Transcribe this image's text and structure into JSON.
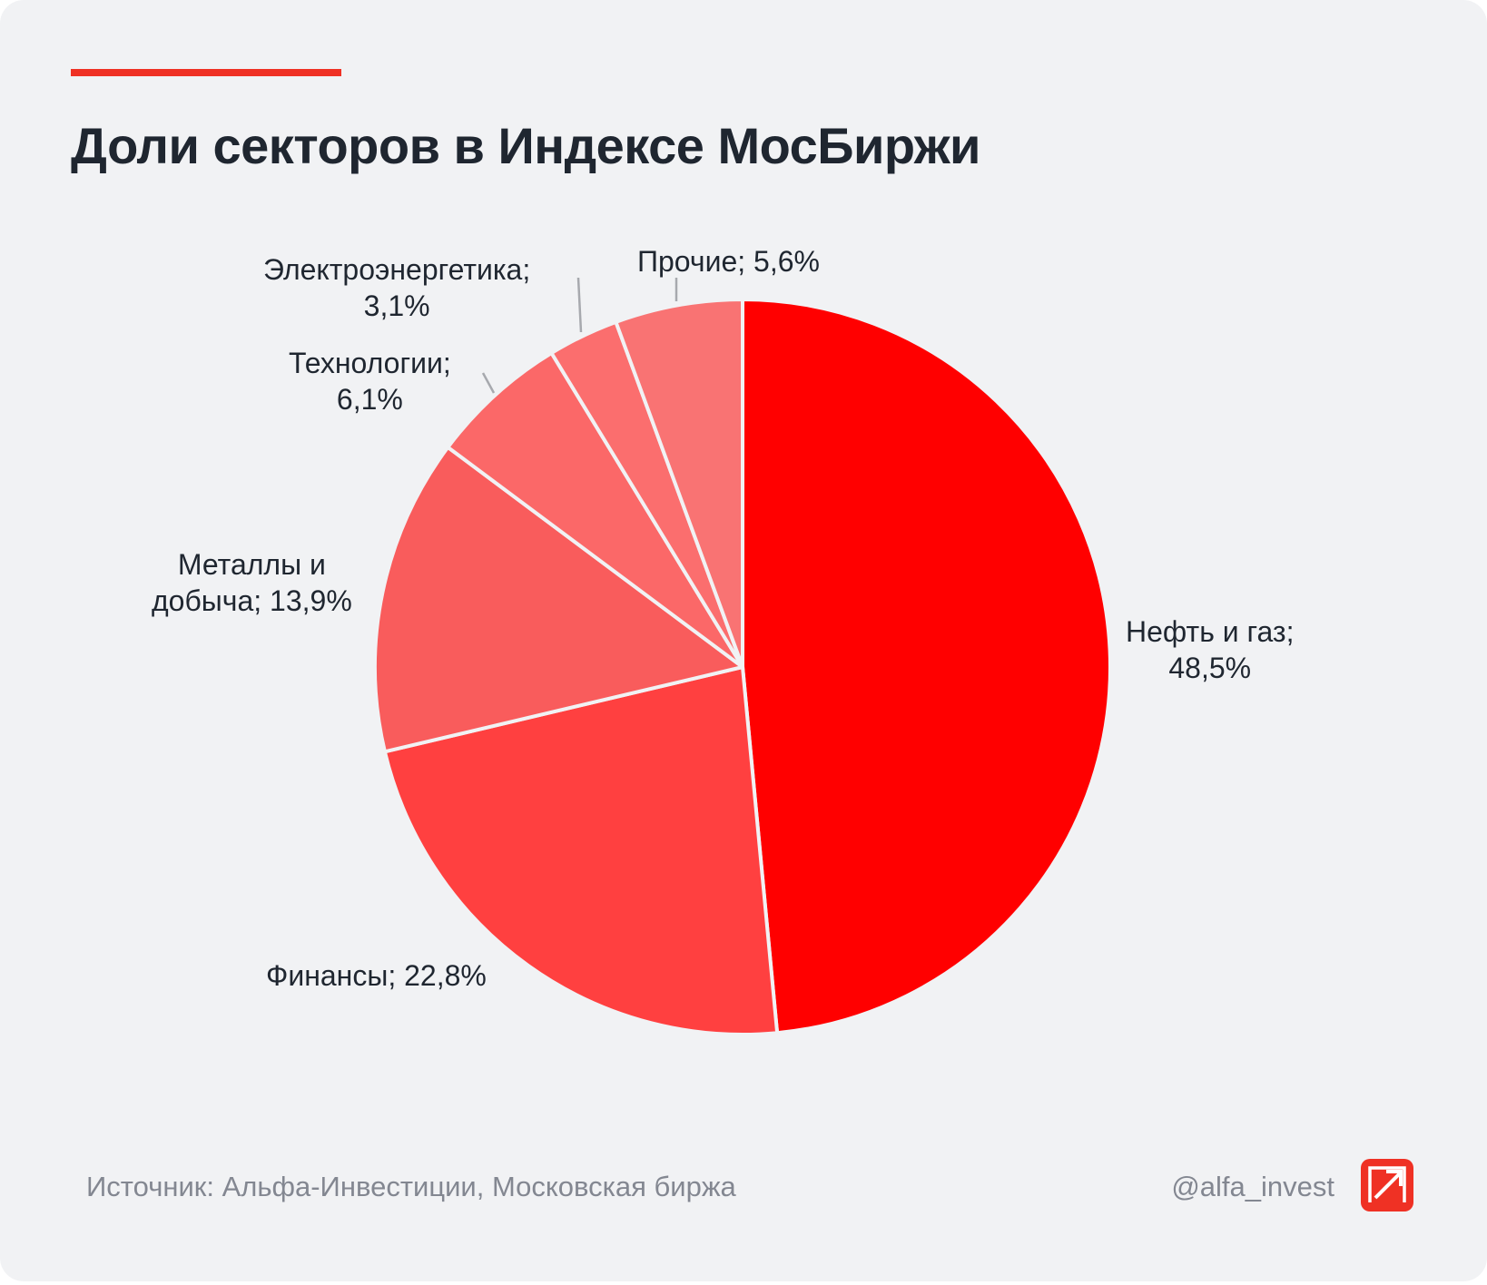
{
  "title": "Доли секторов в Индексе МосБиржи",
  "accent_color": "#ef3124",
  "chart_data": {
    "type": "pie",
    "title": "Доли секторов в Индексе МосБиржи",
    "start": "12 o'clock, clockwise",
    "slices": [
      {
        "label": "Нефть и газ;",
        "value_text": "48,5%",
        "value": 48.5,
        "color": "#ff0000"
      },
      {
        "label": "Финансы;",
        "value_text": "22,8%",
        "value": 22.8,
        "color": "#ff4040"
      },
      {
        "label": "Металлы и добыча;",
        "label_lines": [
          "Металлы и",
          "добыча; 13,9%"
        ],
        "value": 13.9,
        "color": "#f95c5c"
      },
      {
        "label": "Технологии;",
        "value_text": "6,1%",
        "value": 6.1,
        "color": "#fb6868"
      },
      {
        "label": "Электроэнергетика;",
        "value_text": "3,1%",
        "value": 3.1,
        "color": "#fb6e6e"
      },
      {
        "label": "Прочие;",
        "value_text": "5,6%",
        "value": 5.6,
        "color": "#f97373"
      }
    ]
  },
  "footer": {
    "source": "Источник: Альфа-Инвестиции, Московская биржа",
    "handle": "@alfa_invest",
    "logo_icon": "alfa-logo-icon"
  }
}
